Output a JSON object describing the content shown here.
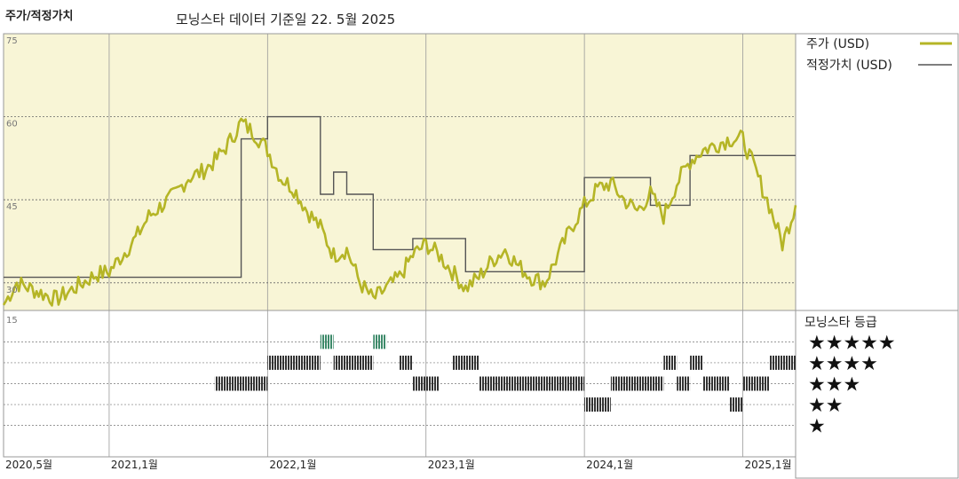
{
  "header": {
    "title": "주가/적정가치",
    "subtitle": "모닝스타 데이터 기준일 22. 5월 2025"
  },
  "legend": {
    "price_label": "주가 (USD)",
    "fair_value_label": "적정가치 (USD)",
    "rating_title": "모닝스타 등급",
    "stars": [
      "★★★★★",
      "★★★★",
      "★★★",
      "★★",
      "★"
    ]
  },
  "colors": {
    "price_line": "#b5b526",
    "fair_value_line": "#555555",
    "plot_background": "#f8f5d6",
    "rating_five": "#3d8a6a",
    "rating_default": "#333333"
  },
  "chart_data": {
    "type": "line",
    "y_axis": {
      "ticks": [
        "75",
        "60",
        "45",
        "30"
      ],
      "range": [
        15,
        75
      ]
    },
    "lower_axis_tick": "15",
    "x_axis": {
      "ticks": [
        "2020,5월",
        "2021,1월",
        "2022,1월",
        "2023,1월",
        "2024,1월",
        "2025,1월"
      ],
      "range": [
        "2020-05",
        "2025-05"
      ]
    },
    "series": [
      {
        "name": "주가 (USD)",
        "points": [
          [
            "2020-05",
            26
          ],
          [
            "2020-06",
            30
          ],
          [
            "2020-07",
            29
          ],
          [
            "2020-08",
            28
          ],
          [
            "2020-09",
            27
          ],
          [
            "2020-10",
            28.5
          ],
          [
            "2020-11",
            30
          ],
          [
            "2020-12",
            31.5
          ],
          [
            "2021-01",
            32
          ],
          [
            "2021-02",
            35
          ],
          [
            "2021-03",
            38
          ],
          [
            "2021-04",
            42
          ],
          [
            "2021-05",
            44
          ],
          [
            "2021-06",
            46
          ],
          [
            "2021-07",
            49
          ],
          [
            "2021-08",
            50
          ],
          [
            "2021-09",
            52
          ],
          [
            "2021-10",
            55
          ],
          [
            "2021-11",
            59
          ],
          [
            "2021-12",
            57
          ],
          [
            "2022-01",
            54
          ],
          [
            "2022-02",
            49
          ],
          [
            "2022-03",
            47
          ],
          [
            "2022-04",
            43
          ],
          [
            "2022-05",
            40
          ],
          [
            "2022-06",
            35
          ],
          [
            "2022-07",
            36
          ],
          [
            "2022-08",
            30
          ],
          [
            "2022-09",
            27
          ],
          [
            "2022-10",
            29
          ],
          [
            "2022-11",
            31
          ],
          [
            "2022-12",
            35
          ],
          [
            "2023-01",
            37
          ],
          [
            "2023-02",
            35
          ],
          [
            "2023-03",
            32
          ],
          [
            "2023-04",
            29
          ],
          [
            "2023-05",
            31
          ],
          [
            "2023-06",
            34
          ],
          [
            "2023-07",
            36
          ],
          [
            "2023-08",
            33
          ],
          [
            "2023-09",
            31
          ],
          [
            "2023-10",
            30
          ],
          [
            "2023-11",
            35
          ],
          [
            "2023-12",
            40
          ],
          [
            "2024-01",
            44
          ],
          [
            "2024-02",
            47
          ],
          [
            "2024-03",
            48
          ],
          [
            "2024-04",
            45
          ],
          [
            "2024-05",
            43
          ],
          [
            "2024-06",
            46
          ],
          [
            "2024-07",
            42
          ],
          [
            "2024-08",
            48
          ],
          [
            "2024-09",
            52
          ],
          [
            "2024-10",
            54
          ],
          [
            "2024-11",
            55
          ],
          [
            "2024-12",
            56
          ],
          [
            "2025-01",
            56
          ],
          [
            "2025-02",
            50
          ],
          [
            "2025-03",
            44
          ],
          [
            "2025-04",
            37
          ],
          [
            "2025-05",
            44
          ]
        ]
      },
      {
        "name": "적정가치 (USD)",
        "points": [
          [
            "2020-05",
            31
          ],
          [
            "2021-11",
            31
          ],
          [
            "2021-11",
            56
          ],
          [
            "2022-01",
            56
          ],
          [
            "2022-01",
            60
          ],
          [
            "2022-05",
            60
          ],
          [
            "2022-05",
            46
          ],
          [
            "2022-06",
            46
          ],
          [
            "2022-06",
            50
          ],
          [
            "2022-07",
            50
          ],
          [
            "2022-07",
            46
          ],
          [
            "2022-09",
            46
          ],
          [
            "2022-09",
            36
          ],
          [
            "2022-12",
            36
          ],
          [
            "2022-12",
            38
          ],
          [
            "2023-04",
            38
          ],
          [
            "2023-04",
            32
          ],
          [
            "2024-01",
            32
          ],
          [
            "2024-01",
            49
          ],
          [
            "2024-06",
            49
          ],
          [
            "2024-06",
            44
          ],
          [
            "2024-09",
            44
          ],
          [
            "2024-09",
            53
          ],
          [
            "2025-05",
            53
          ]
        ]
      }
    ],
    "rating_history": {
      "levels": [
        5,
        4,
        3,
        2,
        1
      ],
      "segments": [
        {
          "stars": 3,
          "start": "2021-09",
          "end": "2022-01"
        },
        {
          "stars": 4,
          "start": "2022-01",
          "end": "2022-05"
        },
        {
          "stars": 5,
          "start": "2022-05",
          "end": "2022-06"
        },
        {
          "stars": 4,
          "start": "2022-06",
          "end": "2022-09"
        },
        {
          "stars": 5,
          "start": "2022-09",
          "end": "2022-10"
        },
        {
          "stars": 4,
          "start": "2022-11",
          "end": "2022-12"
        },
        {
          "stars": 3,
          "start": "2022-12",
          "end": "2023-02"
        },
        {
          "stars": 4,
          "start": "2023-03",
          "end": "2023-05"
        },
        {
          "stars": 3,
          "start": "2023-05",
          "end": "2024-01"
        },
        {
          "stars": 2,
          "start": "2024-01",
          "end": "2024-03"
        },
        {
          "stars": 3,
          "start": "2024-03",
          "end": "2024-07"
        },
        {
          "stars": 4,
          "start": "2024-07",
          "end": "2024-08"
        },
        {
          "stars": 3,
          "start": "2024-08",
          "end": "2024-09"
        },
        {
          "stars": 4,
          "start": "2024-09",
          "end": "2024-10"
        },
        {
          "stars": 3,
          "start": "2024-10",
          "end": "2024-12"
        },
        {
          "stars": 2,
          "start": "2024-12",
          "end": "2025-01"
        },
        {
          "stars": 3,
          "start": "2025-01",
          "end": "2025-03"
        },
        {
          "stars": 4,
          "start": "2025-03",
          "end": "2025-05"
        }
      ]
    }
  }
}
